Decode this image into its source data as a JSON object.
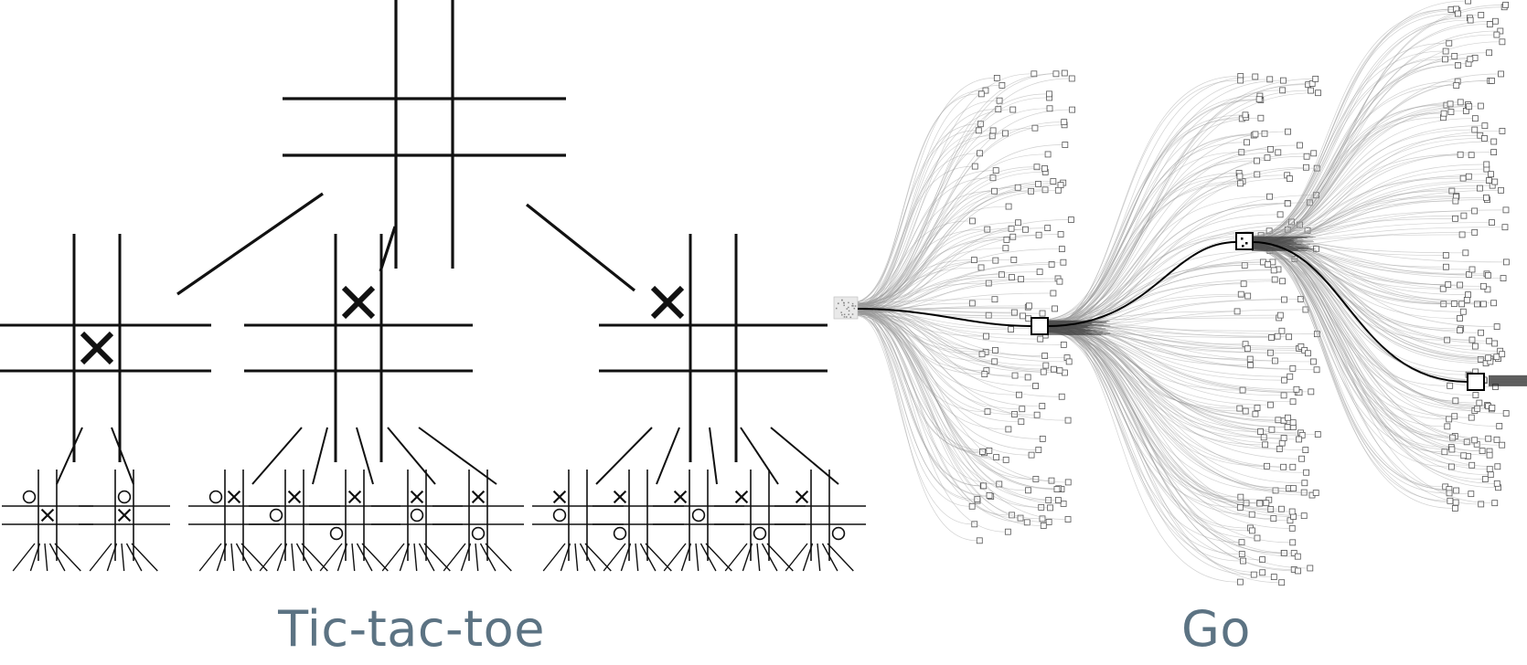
{
  "captions": {
    "tic_tac_toe": "Tic-tac-toe",
    "go": "Go"
  },
  "colors": {
    "caption": "#5c7383",
    "ink": "#111111",
    "go_edges": "#9a9a9a"
  },
  "tic_tac_toe_tree": {
    "root": [
      "",
      "",
      "",
      "",
      "",
      "",
      "",
      "",
      ""
    ],
    "children": [
      {
        "board": [
          "",
          "",
          "",
          "",
          "X",
          "",
          "",
          "",
          ""
        ],
        "grandchildren": [
          [
            "O",
            "",
            "",
            "",
            "X",
            "",
            "",
            "",
            ""
          ],
          [
            "",
            "O",
            "",
            "",
            "X",
            "",
            "",
            "",
            ""
          ]
        ]
      },
      {
        "board": [
          "",
          "X",
          "",
          "",
          "",
          "",
          "",
          "",
          ""
        ],
        "grandchildren": [
          [
            "O",
            "X",
            "",
            "",
            "",
            "",
            "",
            "",
            ""
          ],
          [
            "",
            "X",
            "",
            "O",
            "",
            "",
            "",
            "",
            ""
          ],
          [
            "",
            "X",
            "",
            "",
            "",
            "",
            "O",
            "",
            ""
          ],
          [
            "",
            "X",
            "",
            "",
            "O",
            "",
            "",
            "",
            ""
          ],
          [
            "",
            "X",
            "",
            "",
            "",
            "",
            "",
            "O",
            ""
          ]
        ]
      },
      {
        "board": [
          "X",
          "",
          "",
          "",
          "",
          "",
          "",
          "",
          ""
        ],
        "grandchildren": [
          [
            "X",
            "",
            "",
            "O",
            "",
            "",
            "",
            "",
            ""
          ],
          [
            "X",
            "",
            "",
            "",
            "",
            "",
            "O",
            "",
            ""
          ],
          [
            "X",
            "",
            "",
            "",
            "O",
            "",
            "",
            "",
            ""
          ],
          [
            "X",
            "",
            "",
            "",
            "",
            "",
            "",
            "O",
            ""
          ],
          [
            "X",
            "",
            "",
            "",
            "",
            "",
            "",
            "",
            "O"
          ]
        ]
      }
    ]
  },
  "go_tree": {
    "levels": 4,
    "selected_path_nodes": 4
  }
}
